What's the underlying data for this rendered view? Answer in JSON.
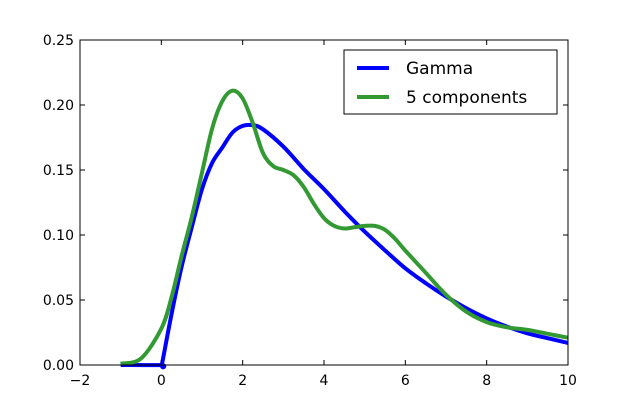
{
  "chart_data": {
    "type": "line",
    "title": "",
    "xlabel": "",
    "ylabel": "",
    "xlim": [
      -2,
      10
    ],
    "ylim": [
      0,
      0.25
    ],
    "grid": false,
    "legend_position": "top-right",
    "x_ticks": [
      {
        "value": -2,
        "label": "−2"
      },
      {
        "value": 0,
        "label": "0"
      },
      {
        "value": 2,
        "label": "2"
      },
      {
        "value": 4,
        "label": "4"
      },
      {
        "value": 6,
        "label": "6"
      },
      {
        "value": 8,
        "label": "8"
      },
      {
        "value": 10,
        "label": "10"
      }
    ],
    "y_ticks": [
      {
        "value": 0,
        "label": "0.00"
      },
      {
        "value": 0.05,
        "label": "0.05"
      },
      {
        "value": 0.1,
        "label": "0.10"
      },
      {
        "value": 0.15,
        "label": "0.15"
      },
      {
        "value": 0.2,
        "label": "0.20"
      },
      {
        "value": 0.25,
        "label": "0.25"
      }
    ],
    "series": [
      {
        "name": "Gamma",
        "color": "#0000ff",
        "x": [
          -1.0,
          0.0,
          0.02,
          0.25,
          0.5,
          0.75,
          1.0,
          1.25,
          1.5,
          1.75,
          2.0,
          2.25,
          2.5,
          3.0,
          3.5,
          4.0,
          4.5,
          5.0,
          5.5,
          6.0,
          6.5,
          7.0,
          7.5,
          8.0,
          8.5,
          9.0,
          9.5,
          10.0
        ],
        "y": [
          0.0,
          0.0,
          0.0014,
          0.039,
          0.0758,
          0.1062,
          0.1353,
          0.1555,
          0.1673,
          0.1788,
          0.1839,
          0.1845,
          0.1813,
          0.168,
          0.1508,
          0.1353,
          0.1184,
          0.1026,
          0.0882,
          0.0744,
          0.063,
          0.0527,
          0.0436,
          0.0358,
          0.0295,
          0.0244,
          0.0206,
          0.017
        ]
      },
      {
        "name": "5 components",
        "color": "#339933",
        "x": [
          -1.0,
          -0.5,
          0.0,
          0.25,
          0.5,
          0.75,
          1.0,
          1.25,
          1.5,
          1.75,
          2.0,
          2.25,
          2.5,
          2.75,
          3.0,
          3.25,
          3.5,
          3.75,
          4.0,
          4.25,
          4.5,
          4.75,
          5.0,
          5.25,
          5.5,
          5.75,
          6.0,
          6.5,
          7.0,
          7.5,
          8.0,
          8.5,
          9.0,
          9.5,
          10.0
        ],
        "y": [
          0.001,
          0.005,
          0.028,
          0.052,
          0.084,
          0.114,
          0.148,
          0.182,
          0.203,
          0.211,
          0.205,
          0.186,
          0.163,
          0.153,
          0.15,
          0.146,
          0.137,
          0.124,
          0.113,
          0.107,
          0.105,
          0.106,
          0.107,
          0.107,
          0.104,
          0.097,
          0.088,
          0.071,
          0.054,
          0.041,
          0.033,
          0.029,
          0.027,
          0.024,
          0.021
        ]
      }
    ]
  }
}
